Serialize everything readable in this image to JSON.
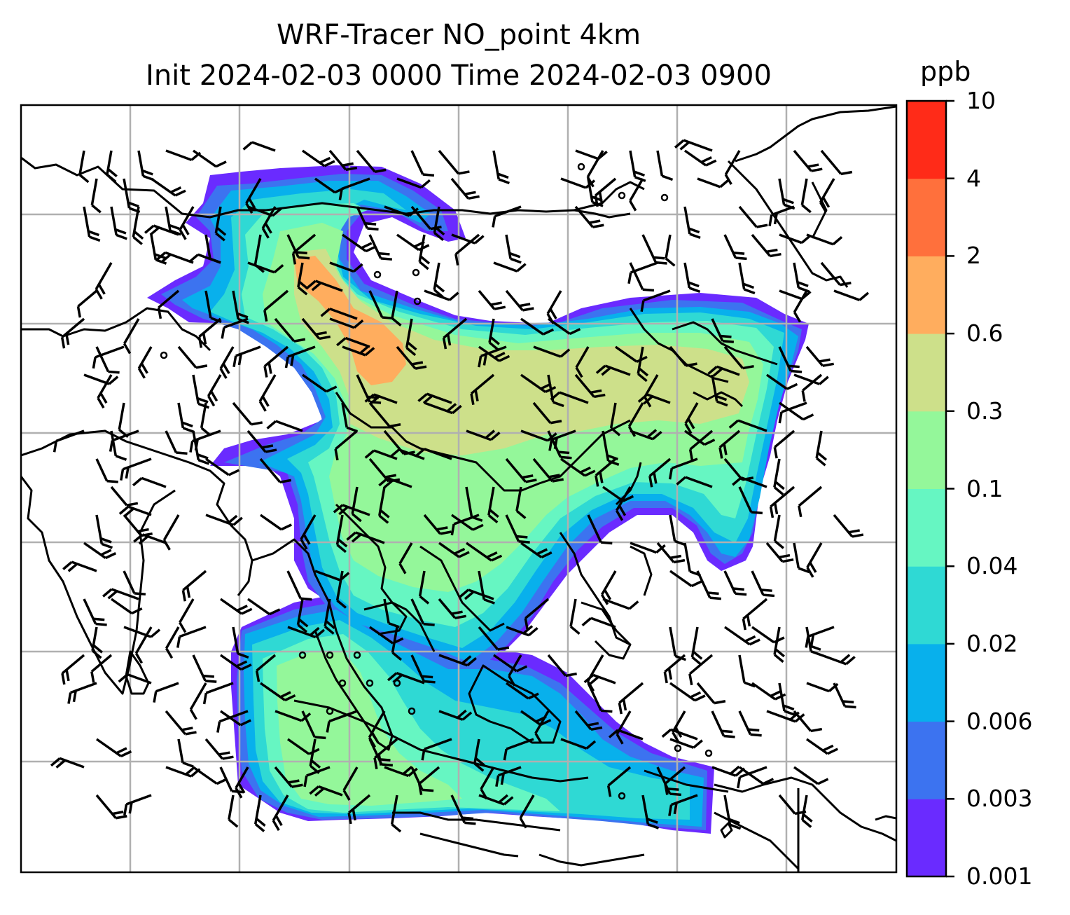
{
  "title": {
    "line1": "WRF-Tracer NO_point 4km",
    "line2": "Init 2024-02-03 0000 Time 2024-02-03 0900"
  },
  "colorbar": {
    "unit": "ppb",
    "levels": [
      "0.001",
      "0.003",
      "0.006",
      "0.02",
      "0.04",
      "0.1",
      "0.3",
      "0.6",
      "2",
      "4",
      "10"
    ],
    "colors": [
      "#6a2bff",
      "#3c73f0",
      "#08b0ec",
      "#2fd9d4",
      "#66f6c2",
      "#94f79a",
      "#cde08a",
      "#ffad5e",
      "#ff703c",
      "#ff2b18"
    ]
  },
  "map": {
    "gridlines": true,
    "coastlines": true,
    "wind_barbs": true,
    "calm_circles": true,
    "border_color": "#000000",
    "grid_color": "#b0b0b0"
  }
}
